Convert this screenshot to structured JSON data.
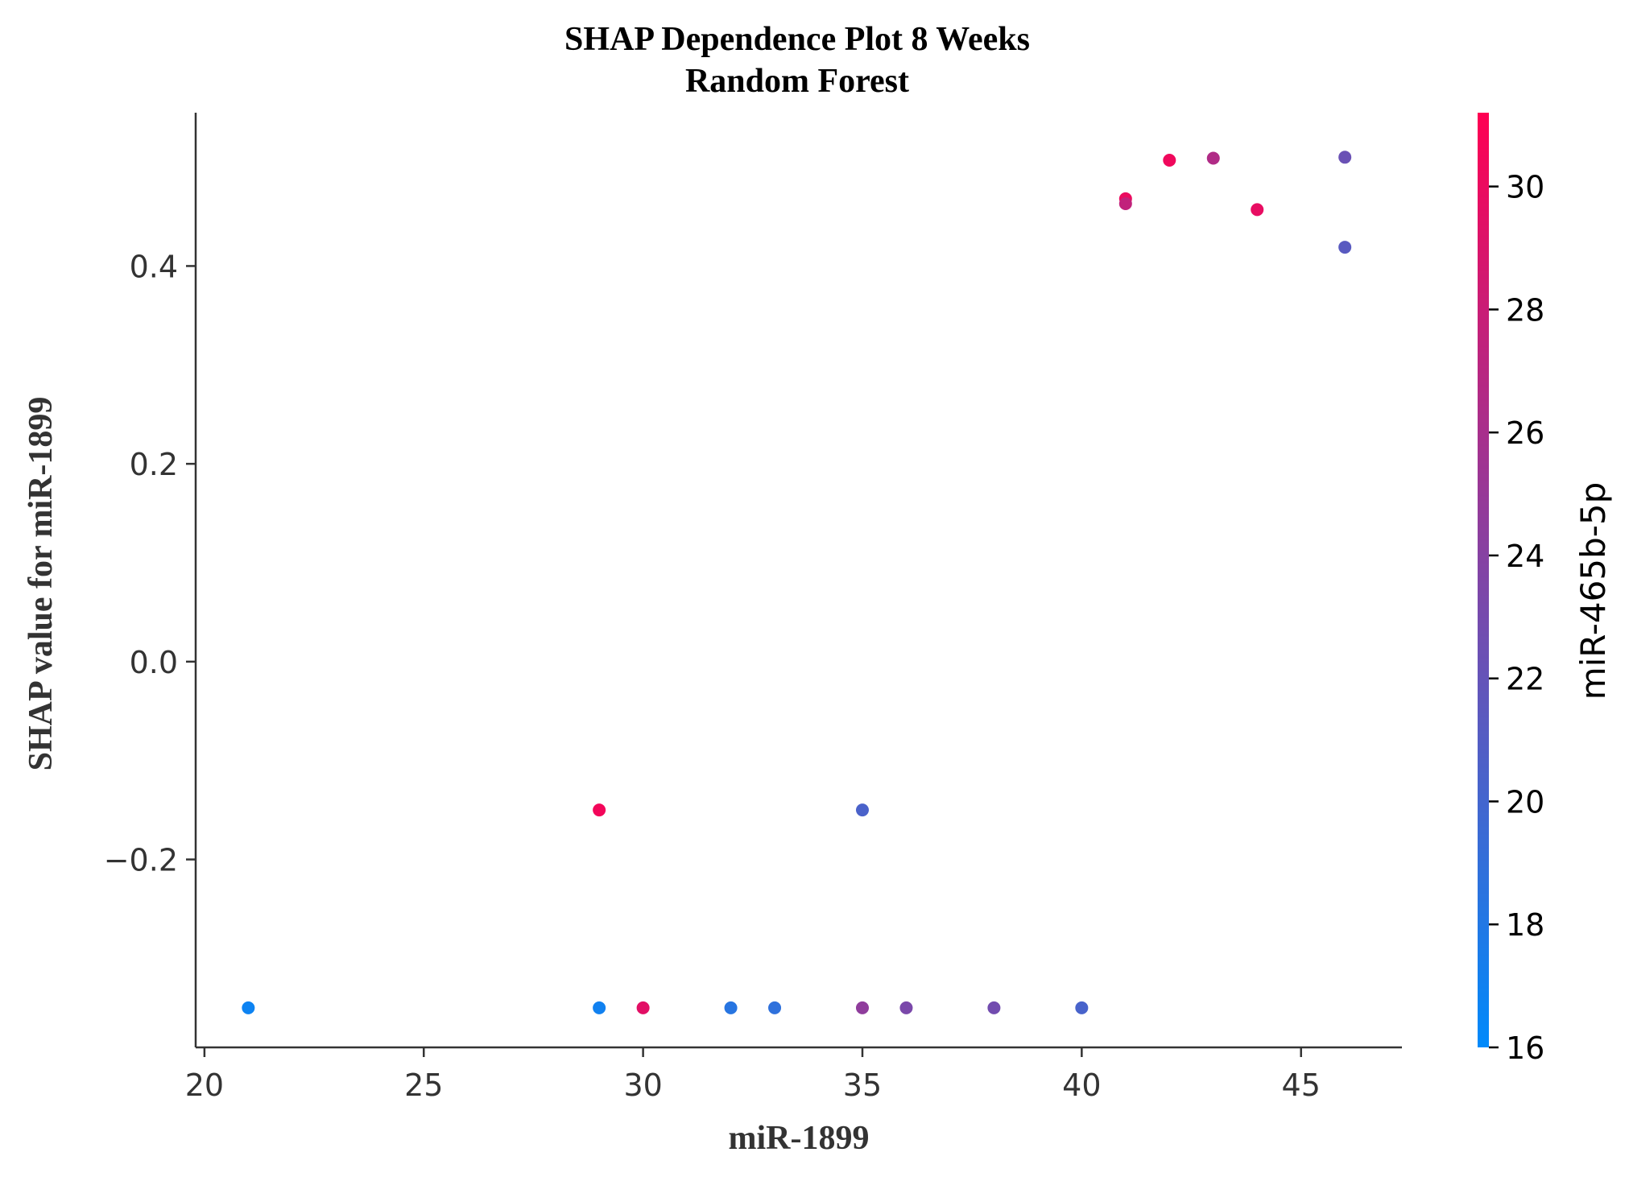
{
  "chart_data": {
    "type": "scatter",
    "title": "SHAP Dependence Plot 8 Weeks",
    "subtitle": "Random Forest",
    "xlabel": "miR-1899",
    "ylabel": "SHAP value for miR-1899",
    "xlim": [
      19.8,
      47.3
    ],
    "ylim": [
      -0.39,
      0.555
    ],
    "xticks": [
      20,
      25,
      30,
      35,
      40,
      45
    ],
    "xtick_labels": [
      "20",
      "25",
      "30",
      "35",
      "40",
      "45"
    ],
    "yticks": [
      -0.2,
      0.0,
      0.2,
      0.4
    ],
    "ytick_labels": [
      "−0.2",
      "0.0",
      "0.2",
      "0.4"
    ],
    "grid": false,
    "colorbar": {
      "label": "miR-465b-5p",
      "range": [
        16,
        31.2
      ],
      "ticks": [
        16,
        18,
        20,
        22,
        24,
        26,
        28,
        30
      ],
      "tick_labels": [
        "16",
        "18",
        "20",
        "22",
        "24",
        "26",
        "28",
        "30"
      ],
      "colors": [
        "#008afb",
        "#ff0052"
      ]
    },
    "points": [
      {
        "x": 21,
        "y": -0.35,
        "c": 16.8
      },
      {
        "x": 29,
        "y": -0.35,
        "c": 17.0
      },
      {
        "x": 29,
        "y": -0.15,
        "c": 30.5
      },
      {
        "x": 30,
        "y": -0.35,
        "c": 29.5
      },
      {
        "x": 32,
        "y": -0.35,
        "c": 18.3
      },
      {
        "x": 33,
        "y": -0.35,
        "c": 18.8
      },
      {
        "x": 35,
        "y": -0.15,
        "c": 20.4
      },
      {
        "x": 35,
        "y": -0.35,
        "c": 24.5
      },
      {
        "x": 36,
        "y": -0.35,
        "c": 23.3
      },
      {
        "x": 38,
        "y": -0.35,
        "c": 22.8
      },
      {
        "x": 40,
        "y": -0.35,
        "c": 20.3
      },
      {
        "x": 41,
        "y": 0.468,
        "c": 30.0
      },
      {
        "x": 41,
        "y": 0.463,
        "c": 27.5
      },
      {
        "x": 42,
        "y": 0.507,
        "c": 30.3
      },
      {
        "x": 43,
        "y": 0.509,
        "c": 26.5
      },
      {
        "x": 44,
        "y": 0.457,
        "c": 29.8
      },
      {
        "x": 46,
        "y": 0.51,
        "c": 22.3
      },
      {
        "x": 46,
        "y": 0.419,
        "c": 21.3
      }
    ]
  }
}
